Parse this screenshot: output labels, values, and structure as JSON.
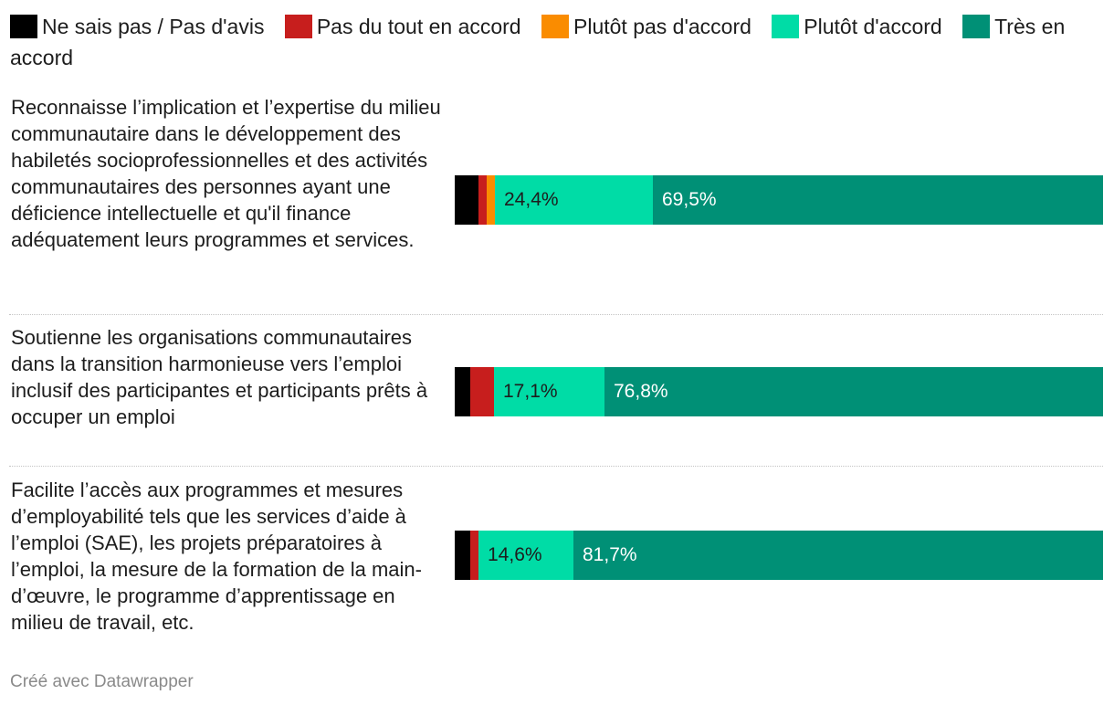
{
  "chart_data": {
    "type": "bar",
    "stacked": true,
    "orientation": "horizontal",
    "unit": "%",
    "legend": {
      "placement": "top",
      "entries": [
        {
          "name": "Ne sais pas / Pas d'avis",
          "color": "#000000"
        },
        {
          "name": "Pas du tout en accord",
          "color": "#c71e1d"
        },
        {
          "name": "Plutôt pas d'accord",
          "color": "#fa8c00"
        },
        {
          "name": "Plutôt d'accord",
          "color": "#00dca6"
        },
        {
          "name": "Très en accord",
          "color": "#009076"
        }
      ]
    },
    "categories": [
      "Reconnaisse l’implication et l’expertise du milieu communautaire dans le développement des habiletés socioprofessionnelles et des activités communautaires des personnes ayant une déficience intellectuelle et qu'il finance adéquatement leurs programmes et services.",
      "Soutienne les organisations communautaires dans la transition harmonieuse vers l’emploi inclusif des participantes et participants prêts à occuper un emploi",
      "Facilite l’accès aux programmes et mesures d’employabilité tels que les services d’aide à l’emploi (SAE), les projets préparatoires à l’emploi, la mesure de la formation de la main-d’œuvre, le programme d’apprentissage en milieu de travail, etc."
    ],
    "series": [
      {
        "name": "Ne sais pas / Pas d'avis",
        "values": [
          3.7,
          2.4,
          2.4
        ],
        "labels": [
          "",
          "",
          ""
        ]
      },
      {
        "name": "Pas du tout en accord",
        "values": [
          1.2,
          3.7,
          1.3
        ],
        "labels": [
          "",
          "",
          ""
        ]
      },
      {
        "name": "Plutôt pas d'accord",
        "values": [
          1.2,
          0,
          0
        ],
        "labels": [
          "",
          "",
          ""
        ]
      },
      {
        "name": "Plutôt d'accord",
        "values": [
          24.4,
          17.1,
          14.6
        ],
        "labels": [
          "24,4%",
          "17,1%",
          "14,6%"
        ]
      },
      {
        "name": "Très en accord",
        "values": [
          69.5,
          76.8,
          81.7
        ],
        "labels": [
          "69,5%",
          "76,8%",
          "81,7%"
        ]
      }
    ],
    "xlim": [
      0,
      100
    ]
  },
  "footer": "Créé avec Datawrapper"
}
